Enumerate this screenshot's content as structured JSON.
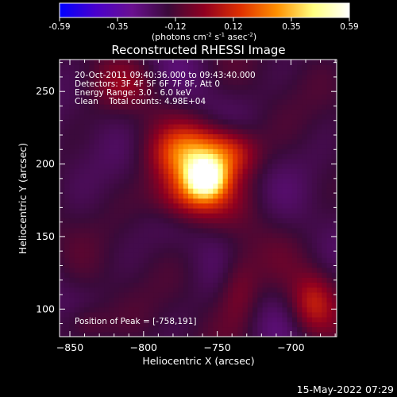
{
  "chart_data": {
    "type": "heatmap",
    "title": "Reconstructed RHESSI Image",
    "xlabel": "Heliocentric X (arcsec)",
    "ylabel": "Heliocentric Y (arcsec)",
    "xlim": [
      -857,
      -669
    ],
    "ylim": [
      81,
      272
    ],
    "x_ticks": [
      -850,
      -800,
      -750,
      -700
    ],
    "y_ticks": [
      100,
      150,
      200,
      250
    ],
    "annotations": [
      "20-Oct-2011 09:40:36.000 to 09:43:40.000",
      "Detectors: 3F 4F 5F 6F 7F 8F, Att 0",
      "Energy Range: 3.0 - 6.0 keV",
      "Clean    Total counts: 4.98E+04"
    ],
    "peak_label": "Position of Peak = [-758,191]",
    "peak": [
      -758,
      191
    ],
    "colorbar": {
      "ticks": [
        "-0.59",
        "-0.35",
        "-0.12",
        "0.12",
        "0.35",
        "0.59"
      ],
      "range": [
        -0.59,
        0.59
      ],
      "unit_text": {
        "base": "(photons cm",
        "exp1": "-2",
        "mid1": " s",
        "exp2": "-1",
        "mid2": " asec",
        "exp3": "-2",
        "tail": ")"
      },
      "colors": [
        "#0000ff",
        "#4a00cc",
        "#6a1090",
        "#3a0a3a",
        "#900020",
        "#e03000",
        "#ff9000",
        "#ffff80",
        "#ffffff"
      ]
    },
    "sources": [
      {
        "x": -758,
        "y": 191,
        "amp": 0.59,
        "sx": 9,
        "sy": 9
      },
      {
        "x": -770,
        "y": 206,
        "amp": 0.38,
        "sx": 16,
        "sy": 14
      },
      {
        "x": -742,
        "y": 208,
        "amp": 0.3,
        "sx": 14,
        "sy": 12
      },
      {
        "x": -768,
        "y": 178,
        "amp": 0.28,
        "sx": 18,
        "sy": 12
      },
      {
        "x": -735,
        "y": 115,
        "amp": 0.15,
        "sx": 10,
        "sy": 18
      },
      {
        "x": -685,
        "y": 105,
        "amp": 0.2,
        "sx": 10,
        "sy": 14
      },
      {
        "x": -840,
        "y": 90,
        "amp": 0.12,
        "sx": 12,
        "sy": 10
      },
      {
        "x": -815,
        "y": 255,
        "amp": 0.1,
        "sx": 15,
        "sy": 10
      }
    ]
  },
  "timestamp": "15-May-2022 07:29"
}
